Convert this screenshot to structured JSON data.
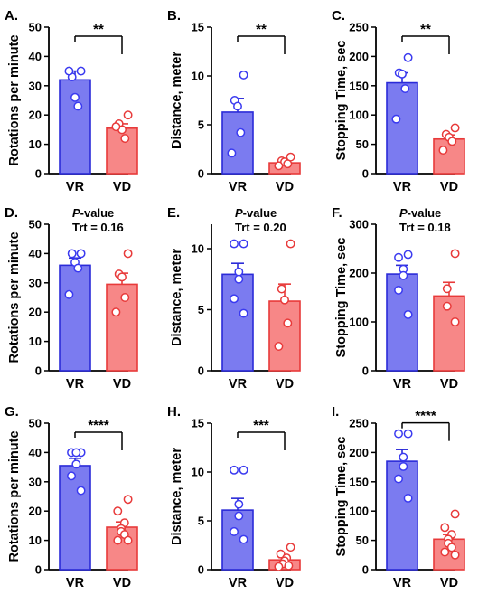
{
  "figure": {
    "bar_colors": {
      "VR": "#7b7bf0",
      "VD": "#f78787"
    },
    "edge_colors": {
      "VR": "#2b2bd8",
      "VD": "#e83a3a"
    },
    "point_colors": {
      "VR": "#3a3af0",
      "VD": "#e83a3a"
    }
  },
  "chart_data": [
    {
      "panel": "A.",
      "type": "bar",
      "categories": [
        "VR",
        "VD"
      ],
      "ylabel": "Rotations per minute",
      "ylim": [
        0,
        50
      ],
      "yticks": [
        0,
        10,
        20,
        30,
        40,
        50
      ],
      "series": [
        {
          "name": "VR",
          "mean": 32,
          "sem": 3,
          "points": [
            35,
            33,
            26,
            23,
            35
          ]
        },
        {
          "name": "VD",
          "mean": 15.5,
          "sem": 1.5,
          "points": [
            20,
            17,
            15,
            12,
            16
          ]
        }
      ],
      "significance": "**",
      "annotation": ""
    },
    {
      "panel": "B.",
      "type": "bar",
      "categories": [
        "VR",
        "VD"
      ],
      "ylabel": "Distance, meter",
      "ylim": [
        0,
        15
      ],
      "yticks": [
        0,
        5,
        10,
        15
      ],
      "series": [
        {
          "name": "VR",
          "mean": 6.3,
          "sem": 1.4,
          "points": [
            10.1,
            7.5,
            6.9,
            4.2,
            2.1
          ]
        },
        {
          "name": "VD",
          "mean": 1.1,
          "sem": 0.2,
          "points": [
            1.7,
            1.3,
            1.2,
            1.0,
            0.8
          ]
        }
      ],
      "significance": "**",
      "annotation": ""
    },
    {
      "panel": "C.",
      "type": "bar",
      "categories": [
        "VR",
        "VD"
      ],
      "ylabel": "Stopping Time, sec",
      "ylim": [
        0,
        250
      ],
      "yticks": [
        0,
        50,
        100,
        150,
        200,
        250
      ],
      "series": [
        {
          "name": "VR",
          "mean": 155,
          "sem": 17,
          "points": [
            198,
            172,
            170,
            145,
            93
          ]
        },
        {
          "name": "VD",
          "mean": 59,
          "sem": 7,
          "points": [
            78,
            67,
            62,
            55,
            40
          ]
        }
      ],
      "significance": "**",
      "annotation": ""
    },
    {
      "panel": "D.",
      "type": "bar",
      "categories": [
        "VR",
        "VD"
      ],
      "ylabel": "Rotations per minute",
      "ylim": [
        0,
        50
      ],
      "yticks": [
        0,
        10,
        20,
        30,
        40,
        50
      ],
      "series": [
        {
          "name": "VR",
          "mean": 36,
          "sem": 2.5,
          "points": [
            40,
            40,
            37,
            35,
            26
          ]
        },
        {
          "name": "VD",
          "mean": 29.5,
          "sem": 3.8,
          "points": [
            40,
            33,
            32,
            25,
            20
          ]
        }
      ],
      "significance": "",
      "annotation": {
        "prefix": "P",
        "suffix": "-value",
        "line2": "Trt = 0.16"
      }
    },
    {
      "panel": "E.",
      "type": "bar",
      "categories": [
        "VR",
        "VD"
      ],
      "ylabel": "Distance, meter",
      "ylim": [
        0,
        12
      ],
      "yticks": [
        0,
        5,
        10
      ],
      "series": [
        {
          "name": "VR",
          "mean": 7.9,
          "sem": 0.9,
          "points": [
            10.4,
            10.4,
            8.1,
            7.5,
            5.9,
            4.7
          ]
        },
        {
          "name": "VD",
          "mean": 5.7,
          "sem": 1.4,
          "points": [
            10.4,
            6.7,
            5.8,
            3.9,
            2.0
          ]
        }
      ],
      "significance": "",
      "annotation": {
        "prefix": "P",
        "suffix": "-value",
        "line2": "Trt = 0.20"
      }
    },
    {
      "panel": "F.",
      "type": "bar",
      "categories": [
        "VR",
        "VD"
      ],
      "ylabel": "Stopping Time, sec",
      "ylim": [
        0,
        300
      ],
      "yticks": [
        0,
        100,
        200,
        300
      ],
      "series": [
        {
          "name": "VR",
          "mean": 198,
          "sem": 18,
          "points": [
            238,
            232,
            208,
            195,
            165,
            115
          ]
        },
        {
          "name": "VD",
          "mean": 153,
          "sem": 28,
          "points": [
            240,
            168,
            132,
            100
          ]
        }
      ],
      "significance": "",
      "annotation": {
        "prefix": "P",
        "suffix": "-value",
        "line2": "Trt = 0.18"
      }
    },
    {
      "panel": "G.",
      "type": "bar",
      "categories": [
        "VR",
        "VD"
      ],
      "ylabel": "Rotations per minute",
      "ylim": [
        0,
        50
      ],
      "yticks": [
        0,
        10,
        20,
        30,
        40,
        50
      ],
      "series": [
        {
          "name": "VR",
          "mean": 35.5,
          "sem": 2.5,
          "points": [
            40,
            40,
            40,
            36,
            32,
            27
          ]
        },
        {
          "name": "VD",
          "mean": 14.5,
          "sem": 1.8,
          "points": [
            24,
            20,
            16,
            14,
            13,
            12,
            10,
            10
          ]
        }
      ],
      "significance": "****",
      "annotation": ""
    },
    {
      "panel": "H.",
      "type": "bar",
      "categories": [
        "VR",
        "VD"
      ],
      "ylabel": "Distance, meter",
      "ylim": [
        0,
        15
      ],
      "yticks": [
        0,
        5,
        10,
        15
      ],
      "series": [
        {
          "name": "VR",
          "mean": 6.1,
          "sem": 1.2,
          "points": [
            10.2,
            10.2,
            6.7,
            5.5,
            3.9,
            3.1
          ]
        },
        {
          "name": "VD",
          "mean": 1.0,
          "sem": 0.25,
          "points": [
            2.3,
            1.6,
            1.2,
            0.9,
            0.6,
            0.4,
            0.3
          ]
        }
      ],
      "significance": "***",
      "annotation": ""
    },
    {
      "panel": "I.",
      "type": "bar",
      "categories": [
        "VR",
        "VD"
      ],
      "ylabel": "Stopping Time, sec",
      "ylim": [
        0,
        250
      ],
      "yticks": [
        0,
        50,
        100,
        150,
        200,
        250
      ],
      "series": [
        {
          "name": "VR",
          "mean": 185,
          "sem": 20,
          "points": [
            232,
            232,
            192,
            176,
            155,
            122
          ]
        },
        {
          "name": "VD",
          "mean": 52,
          "sem": 8,
          "points": [
            95,
            72,
            60,
            52,
            45,
            38,
            30,
            25
          ]
        }
      ],
      "significance": "****",
      "annotation": ""
    }
  ]
}
